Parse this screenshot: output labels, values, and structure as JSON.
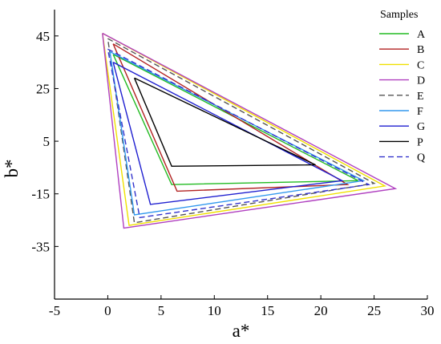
{
  "chart_data": {
    "type": "line",
    "title": "",
    "xlabel": "a*",
    "ylabel": "b*",
    "xlim": [
      -5,
      30
    ],
    "ylim": [
      -55,
      55
    ],
    "xticks": [
      -5,
      0,
      5,
      10,
      15,
      20,
      25,
      30
    ],
    "yticks": [
      -35,
      -15,
      5,
      25,
      45
    ],
    "grid": false,
    "legend": {
      "title": "Samples",
      "placement": "right"
    },
    "series": [
      {
        "name": "A",
        "color": "#22bb22",
        "dash": "solid",
        "points": [
          [
            0.5,
            38
          ],
          [
            23.5,
            -10
          ],
          [
            6,
            -11.5
          ],
          [
            0.5,
            38
          ]
        ]
      },
      {
        "name": "B",
        "color": "#b22222",
        "dash": "solid",
        "points": [
          [
            0.5,
            42
          ],
          [
            22.5,
            -11.5
          ],
          [
            6.5,
            -14
          ],
          [
            0.5,
            42
          ]
        ]
      },
      {
        "name": "C",
        "color": "#f0e000",
        "dash": "solid",
        "points": [
          [
            -0.5,
            46
          ],
          [
            26,
            -12
          ],
          [
            2,
            -27
          ],
          [
            -0.5,
            46
          ]
        ]
      },
      {
        "name": "D",
        "color": "#b040c0",
        "dash": "solid",
        "points": [
          [
            -0.5,
            46
          ],
          [
            27,
            -13
          ],
          [
            1.5,
            -28
          ],
          [
            -0.5,
            46
          ]
        ]
      },
      {
        "name": "E",
        "color": "#555555",
        "dash": "dashed",
        "points": [
          [
            0,
            44
          ],
          [
            25,
            -11
          ],
          [
            2.5,
            -26
          ],
          [
            0,
            44
          ]
        ]
      },
      {
        "name": "F",
        "color": "#3399ee",
        "dash": "solid",
        "points": [
          [
            0.2,
            39
          ],
          [
            24,
            -10
          ],
          [
            2.5,
            -23
          ],
          [
            0.2,
            39
          ]
        ]
      },
      {
        "name": "G",
        "color": "#1f1fd0",
        "dash": "solid",
        "points": [
          [
            0.5,
            35
          ],
          [
            22,
            -10
          ],
          [
            4,
            -19
          ],
          [
            0.5,
            35
          ]
        ]
      },
      {
        "name": "P",
        "color": "#000000",
        "dash": "solid",
        "points": [
          [
            2.5,
            29
          ],
          [
            19.5,
            -4
          ],
          [
            6,
            -4.5
          ],
          [
            2.5,
            29
          ]
        ]
      },
      {
        "name": "Q",
        "color": "#3333cc",
        "dash": "dashed",
        "points": [
          [
            0,
            40
          ],
          [
            24.5,
            -11.5
          ],
          [
            3,
            -24
          ],
          [
            0,
            40
          ]
        ]
      }
    ]
  }
}
